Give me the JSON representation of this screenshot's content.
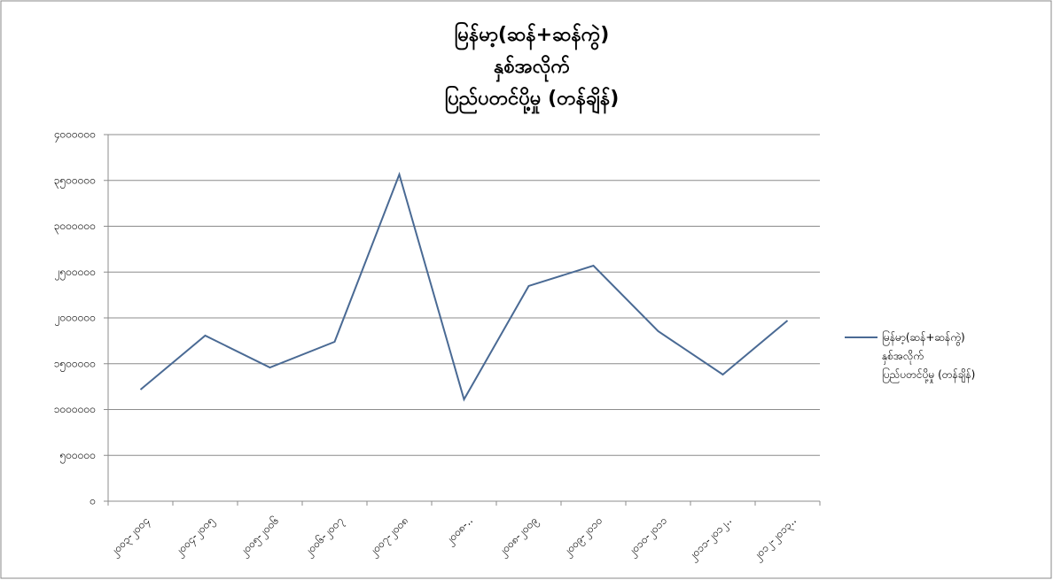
{
  "chart_data": {
    "type": "line",
    "title": [
      "မြန်မာ့(ဆန်+ဆန်ကွဲ)",
      "နှစ်အလိုက်",
      "ပြည်ပတင်ပို့မှု (တန်ချိန်)"
    ],
    "categories": [
      "၂၀၀၃-၂၀၀၄",
      "၂၀၀၄-၂၀၀၅",
      "၂၀၀၅-၂၀၀၆",
      "၂၀၀၆-၂၀၀၇",
      "၂၀၀၇-၂၀၀၈",
      "၂၀၀၈-..",
      "၂၀၀၈-၂၀၀၉",
      "၂၀၀၉-၂၀၁၀",
      "၂၀၁၀-၂၀၁၁",
      "၂၀၁၁-၂၀၁၂..",
      "၂၀၁၂-၂၀၁၃.."
    ],
    "series": [
      {
        "name": "မြန်မာ့(ဆန်+ဆန်ကွဲ)\nနှစ်အလိုက်\nပြည်ပတင်ပို့မှု (တန်ချိန်)",
        "color": "#4a6a94",
        "values": [
          1217000,
          1807000,
          1459000,
          1739000,
          3565000,
          1111000,
          2348000,
          2570000,
          1855000,
          1382000,
          1971000
        ]
      }
    ],
    "ylim": [
      0,
      4000000
    ],
    "yticks": [
      {
        "value": 0,
        "label": "၀"
      },
      {
        "value": 500000,
        "label": "၅၀၀၀၀၀"
      },
      {
        "value": 1000000,
        "label": "၁၀၀၀၀၀၀"
      },
      {
        "value": 1500000,
        "label": "၁၅၀၀၀၀၀"
      },
      {
        "value": 2000000,
        "label": "၂၀၀၀၀၀၀"
      },
      {
        "value": 2500000,
        "label": "၂၅၀၀၀၀၀"
      },
      {
        "value": 3000000,
        "label": "၃၀၀၀၀၀၀"
      },
      {
        "value": 3500000,
        "label": "၃၅၀၀၀၀၀"
      },
      {
        "value": 4000000,
        "label": "၄၀၀၀၀၀၀"
      }
    ],
    "grid": true,
    "legend": "right"
  }
}
